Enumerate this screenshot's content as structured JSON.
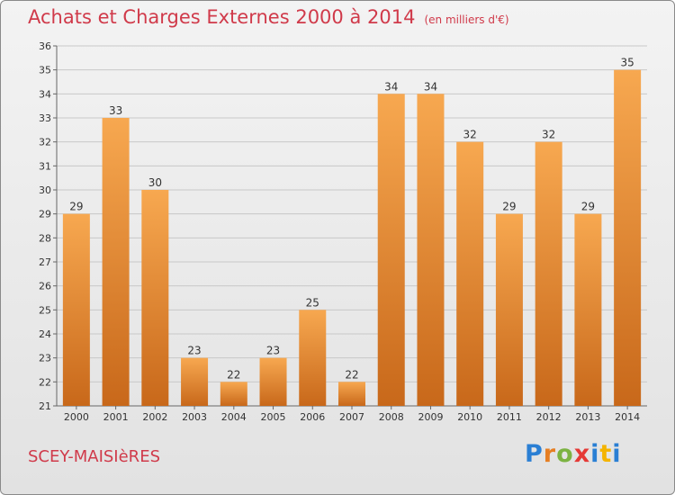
{
  "title": "Achats et Charges Externes 2000 à 2014",
  "unit": "(en milliers d'€)",
  "commune": "SCEY-MAISIèRES",
  "logo": {
    "letters": [
      "P",
      "r",
      "o",
      "x",
      "i",
      "t",
      "i"
    ],
    "colors": [
      "#2a7fd4",
      "#e67e22",
      "#7cb342",
      "#e53935",
      "#2a7fd4",
      "#f4b400",
      "#2a7fd4"
    ]
  },
  "colors": {
    "bar_light": "#f7a850",
    "bar_dark": "#c8681a",
    "grid": "#c8c8c8",
    "text": "#d03a4a"
  },
  "chart_data": {
    "type": "bar",
    "categories": [
      "2000",
      "2001",
      "2002",
      "2003",
      "2004",
      "2005",
      "2006",
      "2007",
      "2008",
      "2009",
      "2010",
      "2011",
      "2012",
      "2013",
      "2014"
    ],
    "values": [
      29,
      33,
      30,
      23,
      22,
      23,
      25,
      22,
      34,
      34,
      32,
      29,
      32,
      29,
      35
    ],
    "yticks": [
      21,
      22,
      23,
      24,
      25,
      26,
      27,
      28,
      29,
      30,
      31,
      32,
      33,
      34,
      35,
      36
    ],
    "ylim": [
      21,
      36
    ],
    "grid": true
  }
}
